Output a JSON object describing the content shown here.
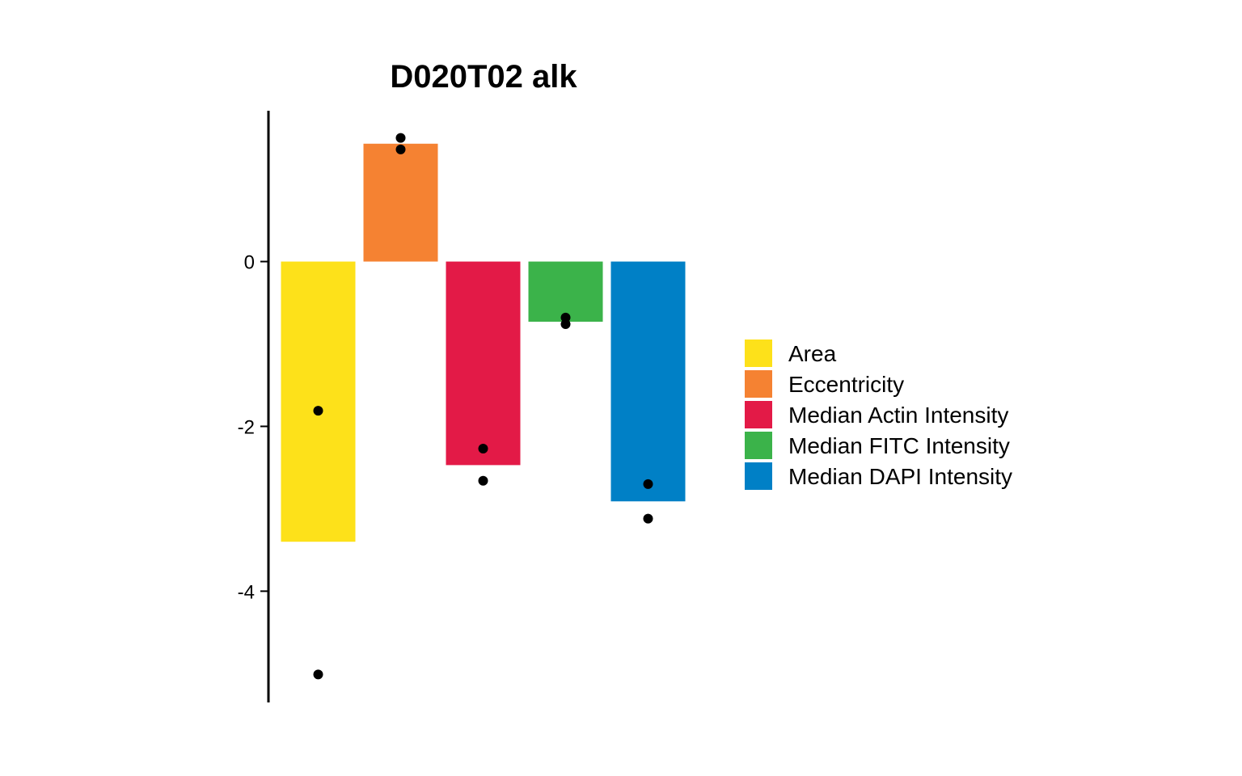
{
  "chart_data": {
    "type": "bar",
    "title": "D020T02 alk",
    "xlabel": "",
    "ylabel": "",
    "categories": [
      "Area",
      "Eccentricity",
      "Median Actin Intensity",
      "Median FITC Intensity",
      "Median DAPI Intensity"
    ],
    "values": [
      -3.4,
      1.43,
      -2.47,
      -0.73,
      -2.91
    ],
    "colors": [
      "#FDE11A",
      "#F58232",
      "#E31A47",
      "#3BB34A",
      "#0080C6"
    ],
    "points": [
      [
        -1.81,
        -5.01
      ],
      [
        1.5,
        1.36
      ],
      [
        -2.27,
        -2.66
      ],
      [
        -0.68,
        -0.76
      ],
      [
        -2.7,
        -3.12
      ]
    ],
    "point_color": "#000000",
    "ylim": [
      -5.35,
      1.83
    ],
    "yticks": [
      0,
      -2,
      -4
    ],
    "ytick_labels": [
      "0",
      "-2",
      "-4"
    ],
    "x_axis_visible": false,
    "grid": false,
    "legend": {
      "position": "right",
      "entries": [
        "Area",
        "Eccentricity",
        "Median Actin Intensity",
        "Median FITC Intensity",
        "Median DAPI Intensity"
      ]
    }
  }
}
